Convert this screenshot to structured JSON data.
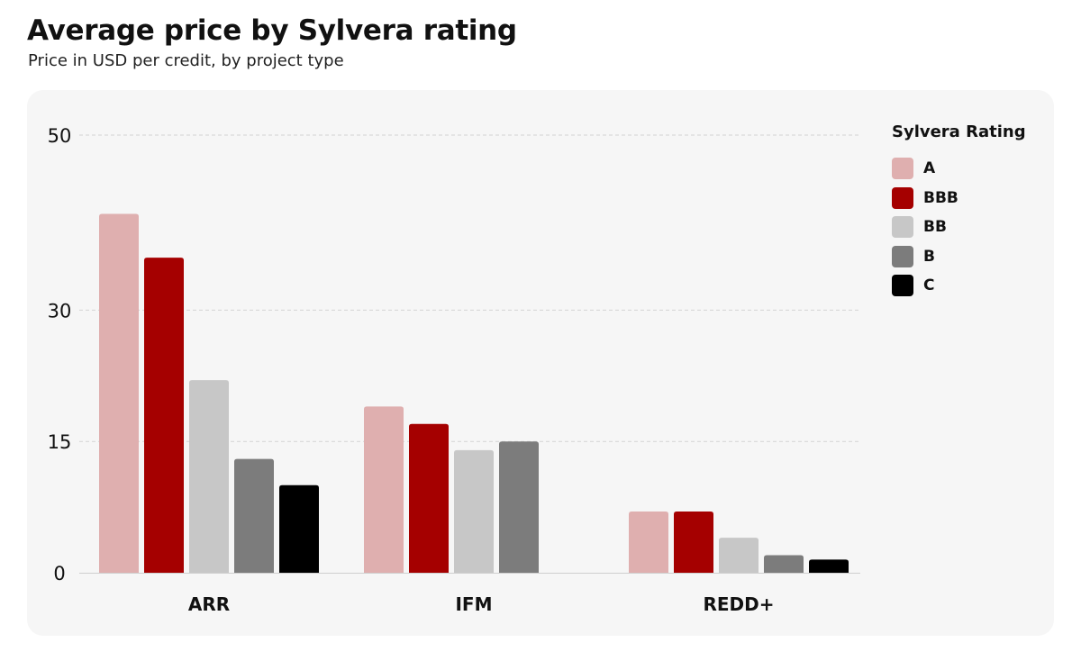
{
  "chart_data": {
    "type": "bar",
    "title": "Average price by Sylvera rating",
    "subtitle": "Price in USD per credit, by project type",
    "categories": [
      "ARR",
      "IFM",
      "REDD+"
    ],
    "series": [
      {
        "name": "A",
        "color": "#dfafaf",
        "values": [
          41,
          19,
          7
        ]
      },
      {
        "name": "BBB",
        "color": "#a50000",
        "values": [
          36,
          17,
          7
        ]
      },
      {
        "name": "BB",
        "color": "#c7c7c7",
        "values": [
          22,
          14,
          4
        ]
      },
      {
        "name": "B",
        "color": "#7c7c7c",
        "values": [
          13,
          15,
          2
        ]
      },
      {
        "name": "C",
        "color": "#000000",
        "values": [
          10,
          null,
          1.5
        ]
      }
    ],
    "y_ticks": [
      0,
      15,
      30,
      50
    ],
    "ylim": [
      0,
      50
    ],
    "grid": true,
    "legend_position": "right",
    "legend_title": "Sylvera Rating"
  }
}
